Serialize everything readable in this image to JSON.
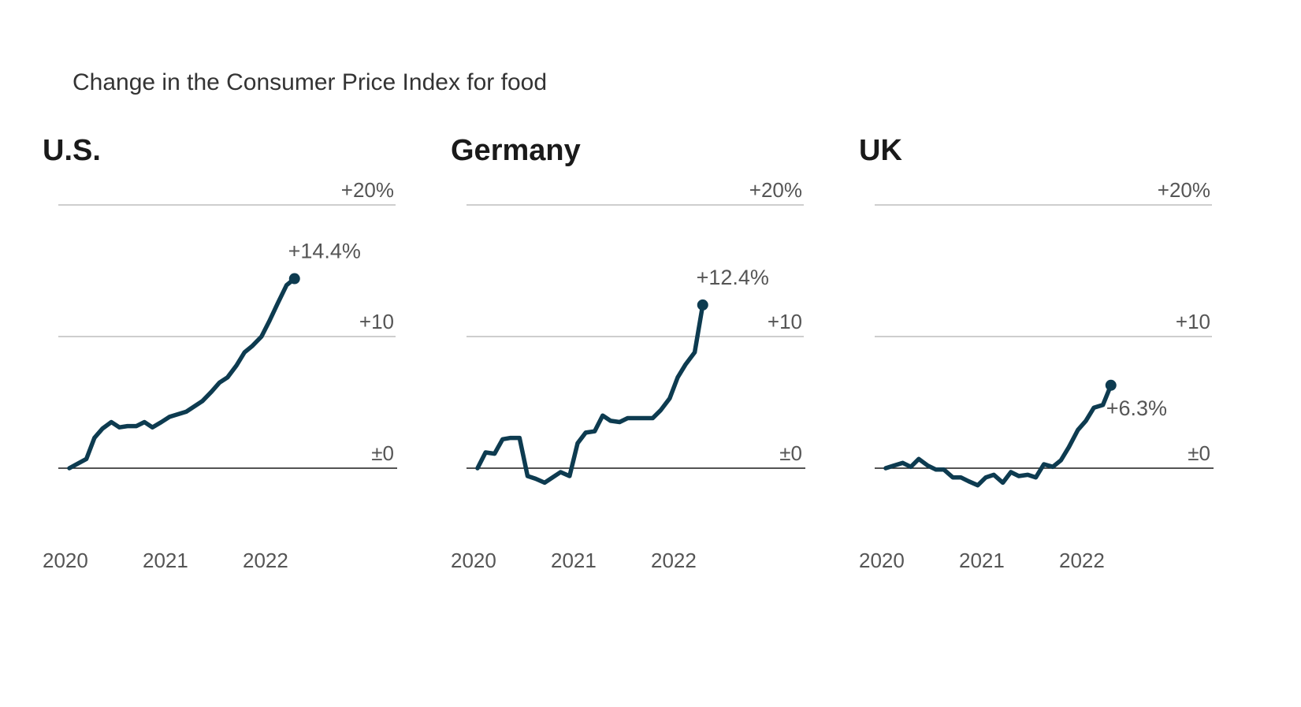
{
  "chart_data": {
    "title": "Change in the Consumer Price Index for food",
    "type": "line",
    "line_color": "#0d3b50",
    "y_ticks": [
      {
        "value": 0,
        "label": "±0"
      },
      {
        "value": 10,
        "label": "+10"
      },
      {
        "value": 20,
        "label": "+20%"
      }
    ],
    "x_ticks": [
      {
        "value": 2020,
        "label": "2020"
      },
      {
        "value": 2021,
        "label": "2021"
      },
      {
        "value": 2022,
        "label": "2022"
      }
    ],
    "x_range": [
      2020,
      2023.3
    ],
    "y_range": [
      -6,
      20
    ],
    "panels": [
      {
        "name": "U.S.",
        "end_label": "+14.4%",
        "points": [
          [
            2020.0,
            0
          ],
          [
            2020.17,
            0.7
          ],
          [
            2020.25,
            2.3
          ],
          [
            2020.33,
            3.0
          ],
          [
            2020.42,
            3.5
          ],
          [
            2020.5,
            3.1
          ],
          [
            2020.58,
            3.2
          ],
          [
            2020.67,
            3.2
          ],
          [
            2020.75,
            3.5
          ],
          [
            2020.83,
            3.1
          ],
          [
            2020.92,
            3.5
          ],
          [
            2021.0,
            3.9
          ],
          [
            2021.17,
            4.3
          ],
          [
            2021.33,
            5.1
          ],
          [
            2021.42,
            5.8
          ],
          [
            2021.5,
            6.5
          ],
          [
            2021.58,
            6.9
          ],
          [
            2021.67,
            7.8
          ],
          [
            2021.75,
            8.8
          ],
          [
            2021.83,
            9.3
          ],
          [
            2021.92,
            10.0
          ],
          [
            2022.0,
            11.2
          ],
          [
            2022.08,
            12.5
          ],
          [
            2022.17,
            13.9
          ],
          [
            2022.25,
            14.4
          ]
        ]
      },
      {
        "name": "Germany",
        "end_label": "+12.4%",
        "points": [
          [
            2020.0,
            0
          ],
          [
            2020.08,
            1.2
          ],
          [
            2020.17,
            1.1
          ],
          [
            2020.25,
            2.2
          ],
          [
            2020.33,
            2.3
          ],
          [
            2020.42,
            2.3
          ],
          [
            2020.5,
            -0.6
          ],
          [
            2020.58,
            -0.8
          ],
          [
            2020.67,
            -1.1
          ],
          [
            2020.75,
            -0.7
          ],
          [
            2020.83,
            -0.3
          ],
          [
            2020.92,
            -0.6
          ],
          [
            2021.0,
            1.9
          ],
          [
            2021.08,
            2.7
          ],
          [
            2021.17,
            2.8
          ],
          [
            2021.25,
            4.0
          ],
          [
            2021.33,
            3.6
          ],
          [
            2021.42,
            3.5
          ],
          [
            2021.5,
            3.8
          ],
          [
            2021.58,
            3.8
          ],
          [
            2021.67,
            3.8
          ],
          [
            2021.75,
            3.8
          ],
          [
            2021.83,
            4.4
          ],
          [
            2021.92,
            5.3
          ],
          [
            2022.0,
            6.9
          ],
          [
            2022.08,
            7.9
          ],
          [
            2022.17,
            8.8
          ],
          [
            2022.25,
            12.4
          ]
        ]
      },
      {
        "name": "UK",
        "end_label": "+6.3%",
        "points": [
          [
            2020.0,
            0
          ],
          [
            2020.08,
            0.2
          ],
          [
            2020.17,
            0.4
          ],
          [
            2020.25,
            0.1
          ],
          [
            2020.33,
            0.7
          ],
          [
            2020.42,
            0.2
          ],
          [
            2020.5,
            -0.1
          ],
          [
            2020.58,
            -0.1
          ],
          [
            2020.67,
            -0.7
          ],
          [
            2020.75,
            -0.7
          ],
          [
            2020.83,
            -1.0
          ],
          [
            2020.92,
            -1.3
          ],
          [
            2021.0,
            -0.7
          ],
          [
            2021.08,
            -0.5
          ],
          [
            2021.17,
            -1.1
          ],
          [
            2021.25,
            -0.3
          ],
          [
            2021.33,
            -0.6
          ],
          [
            2021.42,
            -0.5
          ],
          [
            2021.5,
            -0.7
          ],
          [
            2021.58,
            0.3
          ],
          [
            2021.67,
            0.1
          ],
          [
            2021.75,
            0.6
          ],
          [
            2021.83,
            1.6
          ],
          [
            2021.92,
            2.9
          ],
          [
            2022.0,
            3.6
          ],
          [
            2022.08,
            4.6
          ],
          [
            2022.17,
            4.8
          ],
          [
            2022.25,
            6.3
          ]
        ]
      }
    ]
  }
}
